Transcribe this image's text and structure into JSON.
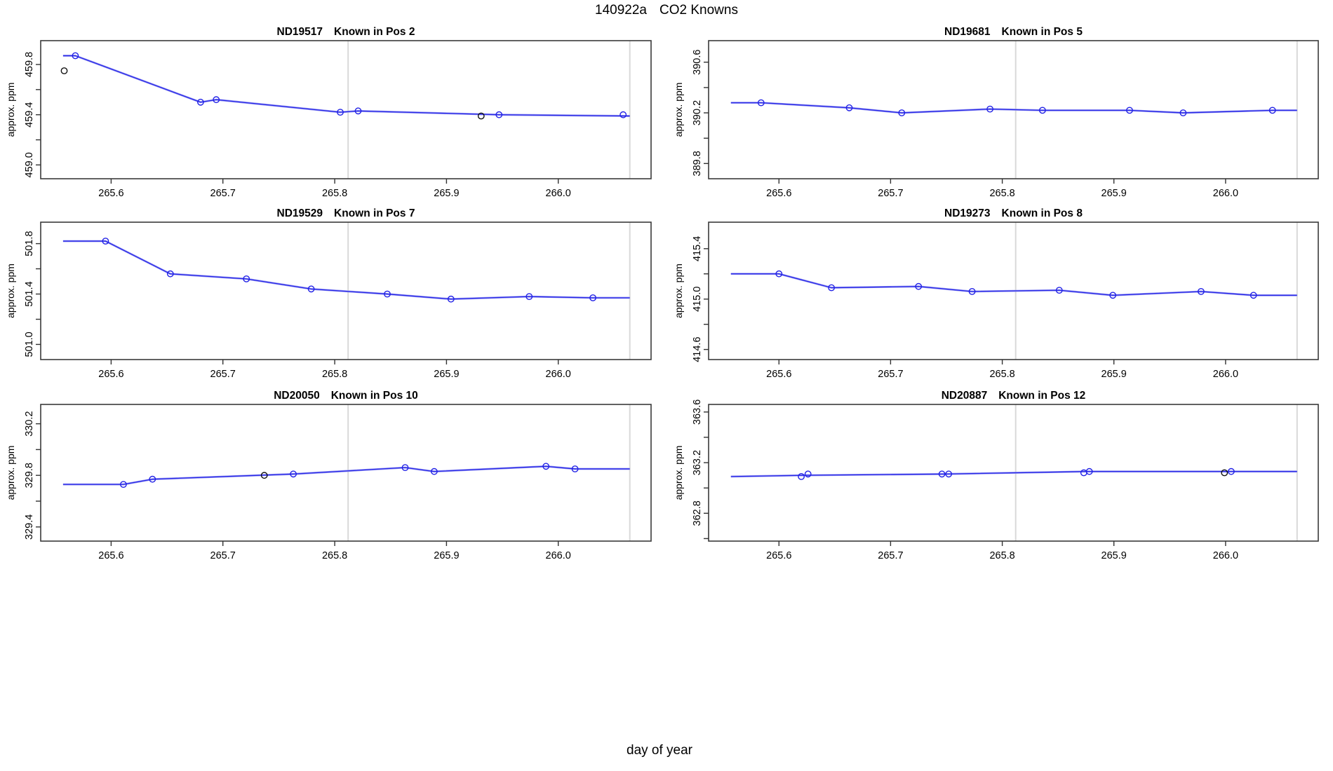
{
  "page": {
    "title_run": "140922a",
    "title_main": "CO2 Knowns",
    "xlabel": "day of year",
    "ylabel": "approx. ppm"
  },
  "colors": {
    "line_dark": "#2c2ce8",
    "line_light": "#9f9ff2",
    "point_blue": "#2222e6",
    "point_black": "#111111",
    "vline": "#d9d9d9",
    "box": "#3a3a3a",
    "tick": "#333333"
  },
  "chart_data": [
    {
      "type": "line",
      "title_id": "ND19517",
      "title_pos": "Known in Pos 2",
      "col": 0,
      "row": 0,
      "xlim": [
        265.537,
        266.083
      ],
      "ylim": [
        458.89,
        459.99
      ],
      "xticks": [
        265.6,
        265.7,
        265.8,
        265.9,
        266.0
      ],
      "yticks": [
        459.0,
        459.2,
        459.4,
        459.6,
        459.8
      ],
      "ytick_labeled": [
        459.0,
        459.4,
        459.8
      ],
      "vlines": [
        265.812,
        266.064
      ],
      "points": [
        {
          "x": 265.558,
          "y": 459.75,
          "c": "black"
        },
        {
          "x": 265.568,
          "y": 459.87,
          "c": "blue"
        },
        {
          "x": 265.68,
          "y": 459.5,
          "c": "blue"
        },
        {
          "x": 265.694,
          "y": 459.52,
          "c": "blue"
        },
        {
          "x": 265.805,
          "y": 459.42,
          "c": "blue"
        },
        {
          "x": 265.821,
          "y": 459.43,
          "c": "blue"
        },
        {
          "x": 265.931,
          "y": 459.39,
          "c": "black"
        },
        {
          "x": 265.947,
          "y": 459.4,
          "c": "blue"
        },
        {
          "x": 266.058,
          "y": 459.4,
          "c": "blue"
        }
      ],
      "line": [
        [
          265.557,
          459.87
        ],
        [
          265.568,
          459.87
        ],
        [
          265.68,
          459.5
        ],
        [
          265.694,
          459.52
        ],
        [
          265.805,
          459.42
        ],
        [
          265.821,
          459.43
        ],
        [
          265.947,
          459.4
        ],
        [
          266.064,
          459.39
        ]
      ]
    },
    {
      "type": "line",
      "title_id": "ND19681",
      "title_pos": "Known in Pos 5",
      "col": 1,
      "row": 0,
      "xlim": [
        265.537,
        266.083
      ],
      "ylim": [
        389.68,
        390.77
      ],
      "xticks": [
        265.6,
        265.7,
        265.8,
        265.9,
        266.0
      ],
      "yticks": [
        389.8,
        390.0,
        390.2,
        390.4,
        390.6
      ],
      "ytick_labeled": [
        389.8,
        390.2,
        390.6
      ],
      "vlines": [
        265.812,
        266.064
      ],
      "points": [
        {
          "x": 265.584,
          "y": 390.28,
          "c": "blue"
        },
        {
          "x": 265.663,
          "y": 390.24,
          "c": "blue"
        },
        {
          "x": 265.71,
          "y": 390.2,
          "c": "blue"
        },
        {
          "x": 265.789,
          "y": 390.23,
          "c": "blue"
        },
        {
          "x": 265.836,
          "y": 390.22,
          "c": "blue"
        },
        {
          "x": 265.914,
          "y": 390.22,
          "c": "blue"
        },
        {
          "x": 265.962,
          "y": 390.2,
          "c": "blue"
        },
        {
          "x": 266.042,
          "y": 390.22,
          "c": "blue"
        }
      ],
      "line": [
        [
          265.557,
          390.28
        ],
        [
          265.584,
          390.28
        ],
        [
          265.663,
          390.24
        ],
        [
          265.71,
          390.2
        ],
        [
          265.789,
          390.23
        ],
        [
          265.836,
          390.22
        ],
        [
          265.914,
          390.22
        ],
        [
          265.962,
          390.2
        ],
        [
          266.042,
          390.22
        ],
        [
          266.064,
          390.22
        ]
      ]
    },
    {
      "type": "line",
      "title_id": "ND19529",
      "title_pos": "Known in Pos 7",
      "col": 0,
      "row": 1,
      "xlim": [
        265.537,
        266.083
      ],
      "ylim": [
        500.88,
        501.97
      ],
      "xticks": [
        265.6,
        265.7,
        265.8,
        265.9,
        266.0
      ],
      "yticks": [
        501.0,
        501.2,
        501.4,
        501.6,
        501.8
      ],
      "ytick_labeled": [
        501.0,
        501.4,
        501.8
      ],
      "vlines": [
        265.812,
        266.064
      ],
      "points": [
        {
          "x": 265.595,
          "y": 501.82,
          "c": "blue"
        },
        {
          "x": 265.653,
          "y": 501.56,
          "c": "blue"
        },
        {
          "x": 265.721,
          "y": 501.52,
          "c": "blue"
        },
        {
          "x": 265.779,
          "y": 501.44,
          "c": "blue"
        },
        {
          "x": 265.847,
          "y": 501.4,
          "c": "blue"
        },
        {
          "x": 265.904,
          "y": 501.36,
          "c": "blue"
        },
        {
          "x": 265.974,
          "y": 501.38,
          "c": "blue"
        },
        {
          "x": 266.031,
          "y": 501.37,
          "c": "blue"
        }
      ],
      "line": [
        [
          265.557,
          501.82
        ],
        [
          265.595,
          501.82
        ],
        [
          265.653,
          501.56
        ],
        [
          265.721,
          501.52
        ],
        [
          265.779,
          501.44
        ],
        [
          265.847,
          501.4
        ],
        [
          265.904,
          501.36
        ],
        [
          265.974,
          501.38
        ],
        [
          266.031,
          501.37
        ],
        [
          266.064,
          501.37
        ]
      ]
    },
    {
      "type": "line",
      "title_id": "ND19273",
      "title_pos": "Known in Pos 8",
      "col": 1,
      "row": 1,
      "xlim": [
        265.537,
        266.083
      ],
      "ylim": [
        414.52,
        415.61
      ],
      "xticks": [
        265.6,
        265.7,
        265.8,
        265.9,
        266.0
      ],
      "yticks": [
        414.6,
        414.8,
        415.0,
        415.2,
        415.4
      ],
      "ytick_labeled": [
        414.6,
        415.0,
        415.4
      ],
      "vlines": [
        265.812,
        266.064
      ],
      "points": [
        {
          "x": 265.6,
          "y": 415.2,
          "c": "blue"
        },
        {
          "x": 265.647,
          "y": 415.09,
          "c": "blue"
        },
        {
          "x": 265.725,
          "y": 415.1,
          "c": "blue"
        },
        {
          "x": 265.773,
          "y": 415.06,
          "c": "blue"
        },
        {
          "x": 265.851,
          "y": 415.07,
          "c": "blue"
        },
        {
          "x": 265.899,
          "y": 415.03,
          "c": "blue"
        },
        {
          "x": 265.978,
          "y": 415.06,
          "c": "blue"
        },
        {
          "x": 266.025,
          "y": 415.03,
          "c": "blue"
        }
      ],
      "line": [
        [
          265.557,
          415.2
        ],
        [
          265.6,
          415.2
        ],
        [
          265.647,
          415.09
        ],
        [
          265.725,
          415.1
        ],
        [
          265.773,
          415.06
        ],
        [
          265.851,
          415.07
        ],
        [
          265.899,
          415.03
        ],
        [
          265.978,
          415.06
        ],
        [
          266.025,
          415.03
        ],
        [
          266.064,
          415.03
        ]
      ]
    },
    {
      "type": "line",
      "title_id": "ND20050",
      "title_pos": "Known in Pos 10",
      "col": 0,
      "row": 2,
      "xlim": [
        265.537,
        266.083
      ],
      "ylim": [
        329.29,
        330.35
      ],
      "xticks": [
        265.6,
        265.7,
        265.8,
        265.9,
        266.0
      ],
      "yticks": [
        329.4,
        329.6,
        329.8,
        330.0,
        330.2
      ],
      "ytick_labeled": [
        329.4,
        329.8,
        330.2
      ],
      "vlines": [
        265.812,
        266.064
      ],
      "points": [
        {
          "x": 265.611,
          "y": 329.73,
          "c": "blue"
        },
        {
          "x": 265.637,
          "y": 329.77,
          "c": "blue"
        },
        {
          "x": 265.737,
          "y": 329.8,
          "c": "black"
        },
        {
          "x": 265.763,
          "y": 329.81,
          "c": "blue"
        },
        {
          "x": 265.863,
          "y": 329.86,
          "c": "blue"
        },
        {
          "x": 265.889,
          "y": 329.83,
          "c": "blue"
        },
        {
          "x": 265.989,
          "y": 329.87,
          "c": "blue"
        },
        {
          "x": 266.015,
          "y": 329.85,
          "c": "blue"
        }
      ],
      "line": [
        [
          265.557,
          329.73
        ],
        [
          265.611,
          329.73
        ],
        [
          265.637,
          329.77
        ],
        [
          265.763,
          329.81
        ],
        [
          265.863,
          329.86
        ],
        [
          265.889,
          329.83
        ],
        [
          265.989,
          329.87
        ],
        [
          266.015,
          329.85
        ],
        [
          266.064,
          329.85
        ]
      ]
    },
    {
      "type": "line",
      "title_id": "ND20887",
      "title_pos": "Known in Pos 12",
      "col": 1,
      "row": 2,
      "xlim": [
        265.537,
        266.083
      ],
      "ylim": [
        362.58,
        363.66
      ],
      "xticks": [
        265.6,
        265.7,
        265.8,
        265.9,
        266.0
      ],
      "yticks": [
        362.6,
        362.8,
        363.0,
        363.2,
        363.4,
        363.6
      ],
      "ytick_labeled": [
        362.8,
        363.2,
        363.6
      ],
      "vlines": [
        265.812,
        266.064
      ],
      "points": [
        {
          "x": 265.62,
          "y": 363.09,
          "c": "blue"
        },
        {
          "x": 265.626,
          "y": 363.11,
          "c": "blue"
        },
        {
          "x": 265.746,
          "y": 363.11,
          "c": "blue"
        },
        {
          "x": 265.752,
          "y": 363.11,
          "c": "blue"
        },
        {
          "x": 265.873,
          "y": 363.12,
          "c": "blue"
        },
        {
          "x": 265.878,
          "y": 363.13,
          "c": "blue"
        },
        {
          "x": 265.999,
          "y": 363.12,
          "c": "black"
        },
        {
          "x": 266.005,
          "y": 363.13,
          "c": "blue"
        }
      ],
      "line": [
        [
          265.557,
          363.09
        ],
        [
          265.623,
          363.1
        ],
        [
          265.749,
          363.11
        ],
        [
          265.875,
          363.13
        ],
        [
          266.002,
          363.13
        ],
        [
          266.064,
          363.13
        ]
      ]
    }
  ]
}
